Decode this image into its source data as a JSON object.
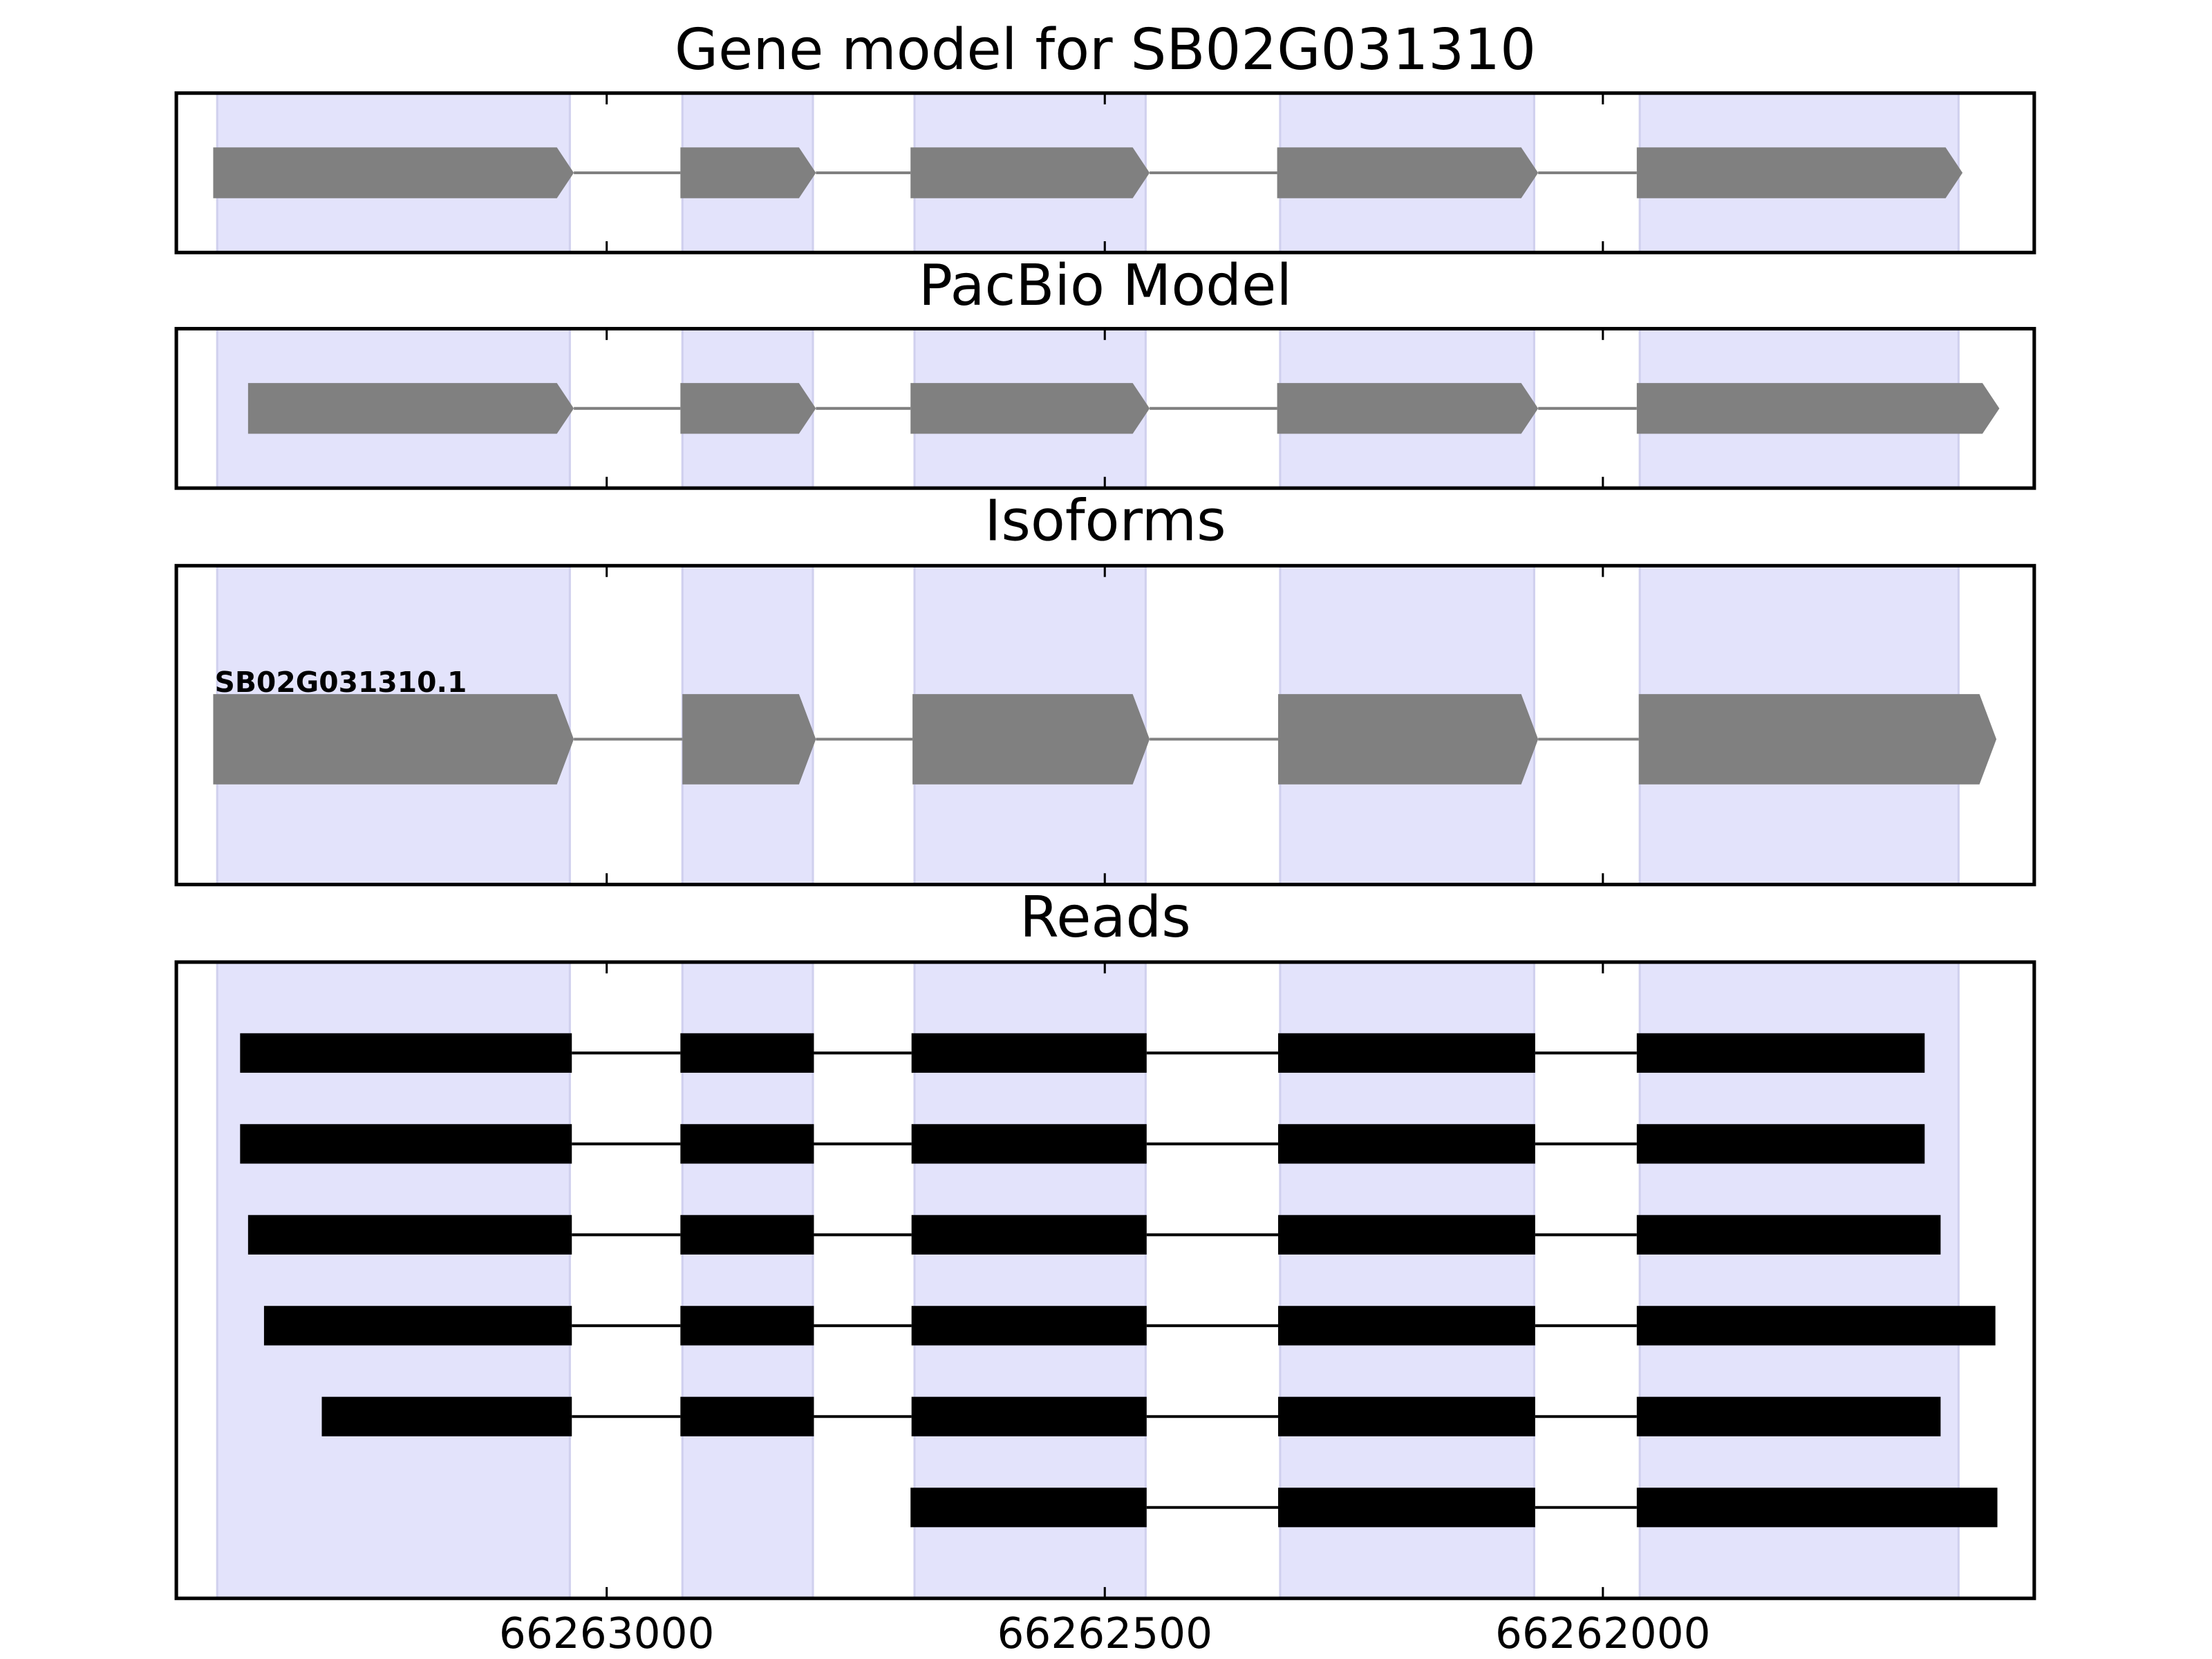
{
  "chart_data": [
    {
      "type": "gene",
      "title": "Gene model for SB02G031310",
      "xlim": [
        66263432,
        66261567
      ],
      "shape": "arrow",
      "color": "#808080",
      "highlight_color": "#e3e3fb",
      "highlights": [
        [
          66263391,
          66263037
        ],
        [
          66262924,
          66262793
        ],
        [
          66262691,
          66262459
        ],
        [
          66262324,
          66262069
        ],
        [
          66261963,
          66261643
        ]
      ],
      "tracks": [
        {
          "exons": [
            [
              66263395,
              66263033
            ],
            [
              66262926,
              66262790
            ],
            [
              66262695,
              66262455
            ],
            [
              66262327,
              66262065
            ],
            [
              66261966,
              66261639
            ]
          ]
        }
      ]
    },
    {
      "type": "gene",
      "title": "PacBio Model",
      "xlim": [
        66263432,
        66261567
      ],
      "shape": "arrow",
      "color": "#808080",
      "highlight_color": "#e3e3fb",
      "highlights": [
        [
          66263391,
          66263037
        ],
        [
          66262924,
          66262793
        ],
        [
          66262691,
          66262459
        ],
        [
          66262324,
          66262069
        ],
        [
          66261963,
          66261643
        ]
      ],
      "tracks": [
        {
          "exons": [
            [
              66263360,
              66263033
            ],
            [
              66262926,
              66262790
            ],
            [
              66262695,
              66262455
            ],
            [
              66262327,
              66262065
            ],
            [
              66261966,
              66261602
            ]
          ]
        }
      ]
    },
    {
      "type": "gene",
      "title": "Isoforms",
      "xlim": [
        66263432,
        66261567
      ],
      "shape": "arrow",
      "color": "#808080",
      "highlight_color": "#e3e3fb",
      "highlights": [
        [
          66263391,
          66263037
        ],
        [
          66262924,
          66262793
        ],
        [
          66262691,
          66262459
        ],
        [
          66262324,
          66262069
        ],
        [
          66261963,
          66261643
        ]
      ],
      "tracks": [
        {
          "label": "SB02G031310.1",
          "exons": [
            [
              66263395,
              66263033
            ],
            [
              66262924,
              66262790
            ],
            [
              66262693,
              66262455
            ],
            [
              66262326,
              66262065
            ],
            [
              66261964,
              66261605
            ]
          ]
        }
      ]
    },
    {
      "type": "gene",
      "title": "Reads",
      "xlim": [
        66263432,
        66261567
      ],
      "shape": "box",
      "color": "#000000",
      "highlight_color": "#e3e3fb",
      "xticks": [
        66263000,
        66262500,
        66262000
      ],
      "highlights": [
        [
          66263391,
          66263037
        ],
        [
          66262924,
          66262793
        ],
        [
          66262691,
          66262459
        ],
        [
          66262324,
          66262069
        ],
        [
          66261963,
          66261643
        ]
      ],
      "tracks": [
        {
          "exons": [
            [
              66263368,
              66263035
            ],
            [
              66262926,
              66262792
            ],
            [
              66262694,
              66262458
            ],
            [
              66262326,
              66262068
            ],
            [
              66261966,
              66261677
            ]
          ]
        },
        {
          "exons": [
            [
              66263368,
              66263035
            ],
            [
              66262926,
              66262792
            ],
            [
              66262694,
              66262458
            ],
            [
              66262326,
              66262068
            ],
            [
              66261966,
              66261677
            ]
          ]
        },
        {
          "exons": [
            [
              66263360,
              66263035
            ],
            [
              66262926,
              66262792
            ],
            [
              66262694,
              66262458
            ],
            [
              66262326,
              66262068
            ],
            [
              66261966,
              66261661
            ]
          ]
        },
        {
          "exons": [
            [
              66263344,
              66263035
            ],
            [
              66262926,
              66262792
            ],
            [
              66262694,
              66262458
            ],
            [
              66262326,
              66262068
            ],
            [
              66261966,
              66261606
            ]
          ]
        },
        {
          "exons": [
            [
              66263286,
              66263035
            ],
            [
              66262926,
              66262792
            ],
            [
              66262694,
              66262458
            ],
            [
              66262326,
              66262068
            ],
            [
              66261966,
              66261661
            ]
          ]
        },
        {
          "exons": [
            [
              66262695,
              66262458
            ],
            [
              66262326,
              66262068
            ],
            [
              66261966,
              66261604
            ]
          ]
        }
      ]
    }
  ]
}
